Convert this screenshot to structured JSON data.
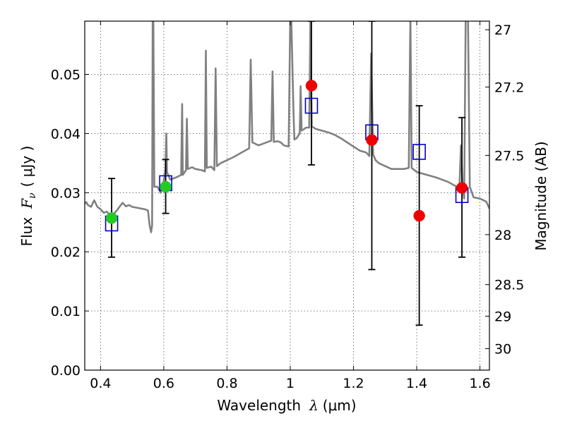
{
  "chart_data": {
    "type": "scatter",
    "title": "",
    "xlabel": "Wavelength",
    "xlabel_symbol": "λ",
    "xlabel_unit": "(μm)",
    "ylabel": "Flux",
    "ylabel_symbol": "F",
    "ylabel_subscript": "ν",
    "ylabel_unit": "( μJy )",
    "y2label": "Magnitude (AB)",
    "xlim": [
      0.35,
      1.63
    ],
    "ylim": [
      0.0,
      0.059
    ],
    "grid": true,
    "xticks": [
      {
        "value": 0.4,
        "label": "0.4"
      },
      {
        "value": 0.6,
        "label": "0.6"
      },
      {
        "value": 0.8,
        "label": "0.8"
      },
      {
        "value": 1.0,
        "label": "1"
      },
      {
        "value": 1.2,
        "label": "1.2"
      },
      {
        "value": 1.4,
        "label": "1.4"
      },
      {
        "value": 1.6,
        "label": "1.6"
      }
    ],
    "yticks": [
      {
        "value": 0.0,
        "label": "0.00"
      },
      {
        "value": 0.01,
        "label": "0.01"
      },
      {
        "value": 0.02,
        "label": "0.02"
      },
      {
        "value": 0.03,
        "label": "0.03"
      },
      {
        "value": 0.04,
        "label": "0.04"
      },
      {
        "value": 0.05,
        "label": "0.05"
      }
    ],
    "y2ticks": [
      {
        "mag": 27.0,
        "label": "27"
      },
      {
        "mag": 27.2,
        "label": "27.2"
      },
      {
        "mag": 27.5,
        "label": "27.5"
      },
      {
        "mag": 28.0,
        "label": "28"
      },
      {
        "mag": 28.5,
        "label": "28.5"
      },
      {
        "mag": 29.0,
        "label": "29"
      },
      {
        "mag": 30.0,
        "label": "30"
      }
    ],
    "series": [
      {
        "kind": "spectrum",
        "color": "#808080",
        "points": [
          [
            0.35,
            0.0281
          ],
          [
            0.355,
            0.0284
          ],
          [
            0.36,
            0.0279
          ],
          [
            0.37,
            0.0276
          ],
          [
            0.375,
            0.0282
          ],
          [
            0.38,
            0.0287
          ],
          [
            0.39,
            0.0276
          ],
          [
            0.4,
            0.0272
          ],
          [
            0.41,
            0.0266
          ],
          [
            0.42,
            0.0268
          ],
          [
            0.43,
            0.0262
          ],
          [
            0.44,
            0.0263
          ],
          [
            0.45,
            0.0269
          ],
          [
            0.46,
            0.0276
          ],
          [
            0.47,
            0.0283
          ],
          [
            0.48,
            0.0277
          ],
          [
            0.49,
            0.0279
          ],
          [
            0.5,
            0.0276
          ],
          [
            0.52,
            0.0274
          ],
          [
            0.54,
            0.0272
          ],
          [
            0.55,
            0.027
          ],
          [
            0.555,
            0.0245
          ],
          [
            0.56,
            0.0233
          ],
          [
            0.563,
            0.0245
          ],
          [
            0.565,
            0.06
          ],
          [
            0.567,
            0.06
          ],
          [
            0.57,
            0.031
          ],
          [
            0.58,
            0.031
          ],
          [
            0.59,
            0.03
          ],
          [
            0.6,
            0.032
          ],
          [
            0.605,
            0.0338
          ],
          [
            0.608,
            0.04
          ],
          [
            0.61,
            0.0335
          ],
          [
            0.62,
            0.0322
          ],
          [
            0.64,
            0.0326
          ],
          [
            0.655,
            0.033
          ],
          [
            0.658,
            0.045
          ],
          [
            0.66,
            0.033
          ],
          [
            0.67,
            0.0338
          ],
          [
            0.673,
            0.0425
          ],
          [
            0.676,
            0.034
          ],
          [
            0.69,
            0.0343
          ],
          [
            0.7,
            0.034
          ],
          [
            0.72,
            0.0338
          ],
          [
            0.73,
            0.0336
          ],
          [
            0.733,
            0.054
          ],
          [
            0.736,
            0.0342
          ],
          [
            0.75,
            0.0344
          ],
          [
            0.76,
            0.0338
          ],
          [
            0.764,
            0.051
          ],
          [
            0.768,
            0.0345
          ],
          [
            0.78,
            0.035
          ],
          [
            0.8,
            0.0355
          ],
          [
            0.82,
            0.036
          ],
          [
            0.84,
            0.0366
          ],
          [
            0.86,
            0.0372
          ],
          [
            0.87,
            0.0375
          ],
          [
            0.875,
            0.0525
          ],
          [
            0.88,
            0.0385
          ],
          [
            0.9,
            0.038
          ],
          [
            0.92,
            0.0384
          ],
          [
            0.94,
            0.0388
          ],
          [
            0.944,
            0.0505
          ],
          [
            0.948,
            0.0386
          ],
          [
            0.96,
            0.0387
          ],
          [
            0.97,
            0.0385
          ],
          [
            0.98,
            0.038
          ],
          [
            0.995,
            0.0378
          ],
          [
            1.0,
            0.06
          ],
          [
            1.003,
            0.06
          ],
          [
            1.01,
            0.044
          ],
          [
            1.013,
            0.039
          ],
          [
            1.02,
            0.0392
          ],
          [
            1.03,
            0.04
          ],
          [
            1.033,
            0.048
          ],
          [
            1.036,
            0.0405
          ],
          [
            1.045,
            0.0408
          ],
          [
            1.05,
            0.041
          ],
          [
            1.06,
            0.041
          ],
          [
            1.064,
            0.06
          ],
          [
            1.068,
            0.0412
          ],
          [
            1.08,
            0.0408
          ],
          [
            1.1,
            0.0405
          ],
          [
            1.12,
            0.0402
          ],
          [
            1.14,
            0.0398
          ],
          [
            1.16,
            0.0392
          ],
          [
            1.18,
            0.0385
          ],
          [
            1.2,
            0.0378
          ],
          [
            1.22,
            0.0371
          ],
          [
            1.24,
            0.0368
          ],
          [
            1.25,
            0.0362
          ],
          [
            1.256,
            0.0535
          ],
          [
            1.262,
            0.0365
          ],
          [
            1.27,
            0.0355
          ],
          [
            1.28,
            0.035
          ],
          [
            1.3,
            0.0345
          ],
          [
            1.32,
            0.034
          ],
          [
            1.34,
            0.034
          ],
          [
            1.36,
            0.034
          ],
          [
            1.375,
            0.0342
          ],
          [
            1.38,
            0.06
          ],
          [
            1.384,
            0.0342
          ],
          [
            1.4,
            0.0335
          ],
          [
            1.42,
            0.0332
          ],
          [
            1.44,
            0.0329
          ],
          [
            1.46,
            0.0326
          ],
          [
            1.48,
            0.0322
          ],
          [
            1.5,
            0.0318
          ],
          [
            1.52,
            0.0312
          ],
          [
            1.535,
            0.0308
          ],
          [
            1.54,
            0.038
          ],
          [
            1.545,
            0.031
          ],
          [
            1.55,
            0.029
          ],
          [
            1.555,
            0.06
          ],
          [
            1.562,
            0.06
          ],
          [
            1.568,
            0.031
          ],
          [
            1.58,
            0.0292
          ],
          [
            1.6,
            0.029
          ],
          [
            1.62,
            0.0285
          ],
          [
            1.63,
            0.0273
          ]
        ]
      },
      {
        "kind": "errorbars",
        "color": "#000000",
        "points": [
          {
            "x": 0.435,
            "y": 0.0257,
            "ylo": 0.0191,
            "yhi": 0.0324
          },
          {
            "x": 0.606,
            "y": 0.031,
            "ylo": 0.0265,
            "yhi": 0.0356
          },
          {
            "x": 1.067,
            "y": 0.0481,
            "ylo": 0.0347,
            "yhi": 0.059
          },
          {
            "x": 1.258,
            "y": 0.0389,
            "ylo": 0.017,
            "yhi": 0.059
          },
          {
            "x": 1.408,
            "y": 0.0261,
            "ylo": 0.0076,
            "yhi": 0.0447
          },
          {
            "x": 1.543,
            "y": 0.0308,
            "ylo": 0.0191,
            "yhi": 0.0427
          }
        ]
      },
      {
        "kind": "model-squares",
        "color": "#0000cc",
        "points": [
          {
            "x": 0.435,
            "y": 0.0248
          },
          {
            "x": 0.606,
            "y": 0.0316
          },
          {
            "x": 1.067,
            "y": 0.0447
          },
          {
            "x": 1.258,
            "y": 0.0402
          },
          {
            "x": 1.408,
            "y": 0.0369
          },
          {
            "x": 1.543,
            "y": 0.0296
          }
        ]
      },
      {
        "kind": "observed-green",
        "color": "#22cc22",
        "points": [
          {
            "x": 0.435,
            "y": 0.0257
          },
          {
            "x": 0.606,
            "y": 0.031
          }
        ]
      },
      {
        "kind": "observed-red",
        "color": "#ee0000",
        "points": [
          {
            "x": 1.067,
            "y": 0.0481
          },
          {
            "x": 1.258,
            "y": 0.0389
          },
          {
            "x": 1.408,
            "y": 0.0261
          },
          {
            "x": 1.543,
            "y": 0.0308
          }
        ]
      }
    ]
  }
}
